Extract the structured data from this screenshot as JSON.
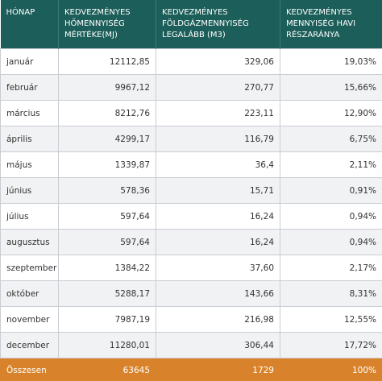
{
  "table": {
    "header": [
      [
        "HÓNAP"
      ],
      [
        "KEDVEZMÉNYES",
        "HŐMENNYISÉG",
        "MÉRTÉKE(MJ)"
      ],
      [
        "KEDVEZMÉNYES",
        "FÖLDGÁZMENNYISÉG",
        "LEGALÁBB (M3)"
      ],
      [
        "KEDVEZMÉNYES",
        "MENNYISÉG HAVI",
        "RÉSZARÁNYA"
      ]
    ],
    "rows": [
      [
        "január",
        "12112,85",
        "329,06",
        "19,03%"
      ],
      [
        "február",
        "9967,12",
        "270,77",
        "15,66%"
      ],
      [
        "március",
        "8212,76",
        "223,11",
        "12,90%"
      ],
      [
        "április",
        "4299,17",
        "116,79",
        "6,75%"
      ],
      [
        "május",
        "1339,87",
        "36,4",
        "2,11%"
      ],
      [
        "június",
        "578,36",
        "15,71",
        "0,91%"
      ],
      [
        "július",
        "597,64",
        "16,24",
        "0,94%"
      ],
      [
        "augusztus",
        "597,64",
        "16,24",
        "0,94%"
      ],
      [
        "szeptember",
        "1384,22",
        "37,60",
        "2,17%"
      ],
      [
        "október",
        "5288,17",
        "143,66",
        "8,31%"
      ],
      [
        "november",
        "7987,19",
        "216,98",
        "12,55%"
      ],
      [
        "december",
        "11280,01",
        "306,44",
        "17,72%"
      ]
    ],
    "total": [
      "Összesen",
      "63645",
      "1729",
      "100%"
    ]
  }
}
